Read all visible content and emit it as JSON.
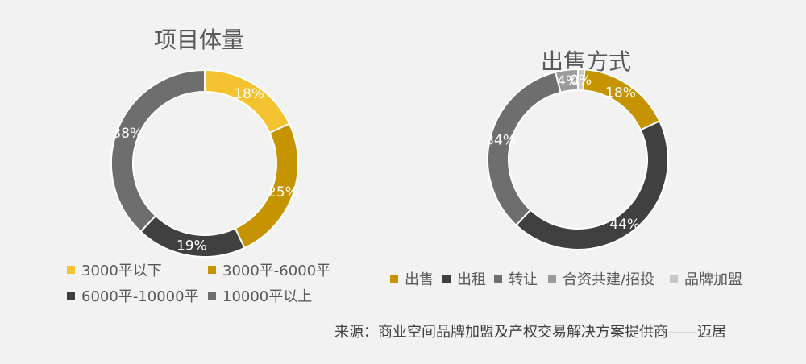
{
  "chart_data": [
    {
      "type": "pie",
      "variant": "donut",
      "title": "项目体量",
      "categories": [
        "3000平以下",
        "3000平-6000平",
        "6000平-10000平",
        "10000平以上"
      ],
      "values": [
        18,
        25,
        19,
        38
      ],
      "value_labels": [
        "18%",
        "25%",
        "19%",
        "38%"
      ],
      "colors": [
        "#f3c332",
        "#c59400",
        "#404040",
        "#6e6e6e"
      ],
      "legend": "bottom"
    },
    {
      "type": "pie",
      "variant": "donut",
      "title": "出售方式",
      "categories": [
        "出售",
        "出租",
        "转让",
        "合资共建/招投",
        "品牌加盟"
      ],
      "values": [
        18,
        44,
        34,
        4,
        0
      ],
      "value_labels": [
        "18%",
        "44%",
        "34%",
        "4%",
        "0%"
      ],
      "colors": [
        "#c59400",
        "#404040",
        "#6e6e6e",
        "#9a9a9a",
        "#c8c8c8"
      ],
      "legend": "bottom"
    }
  ],
  "source": "来源：商业空间品牌加盟及产权交易解决方案提供商——迈居"
}
